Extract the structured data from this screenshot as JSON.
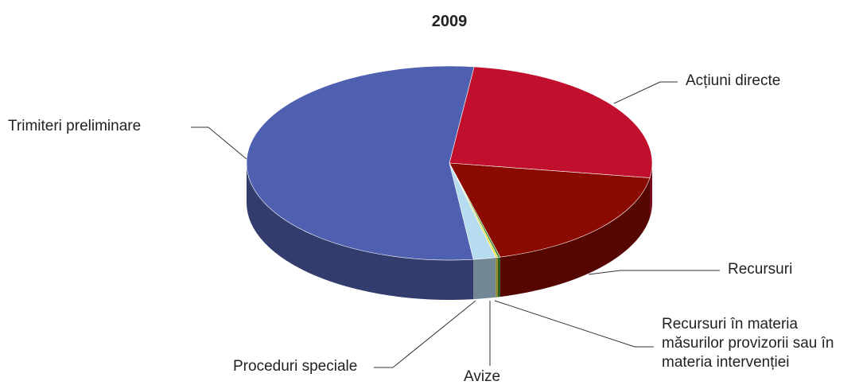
{
  "chart_data": {
    "type": "pie",
    "title": "2009",
    "categories": [
      "Acțiuni directe",
      "Recursuri",
      "Recursuri în materia măsurilor provizorii sau în materia intervenției",
      "Avize",
      "Proceduri speciale",
      "Trimiteri preliminare"
    ],
    "values": [
      143,
      104,
      1,
      1,
      10,
      302
    ],
    "colors": [
      "#c0102e",
      "#8b0a00",
      "#3a8a2e",
      "#e8e040",
      "#b8dcef",
      "#5060b0"
    ]
  }
}
